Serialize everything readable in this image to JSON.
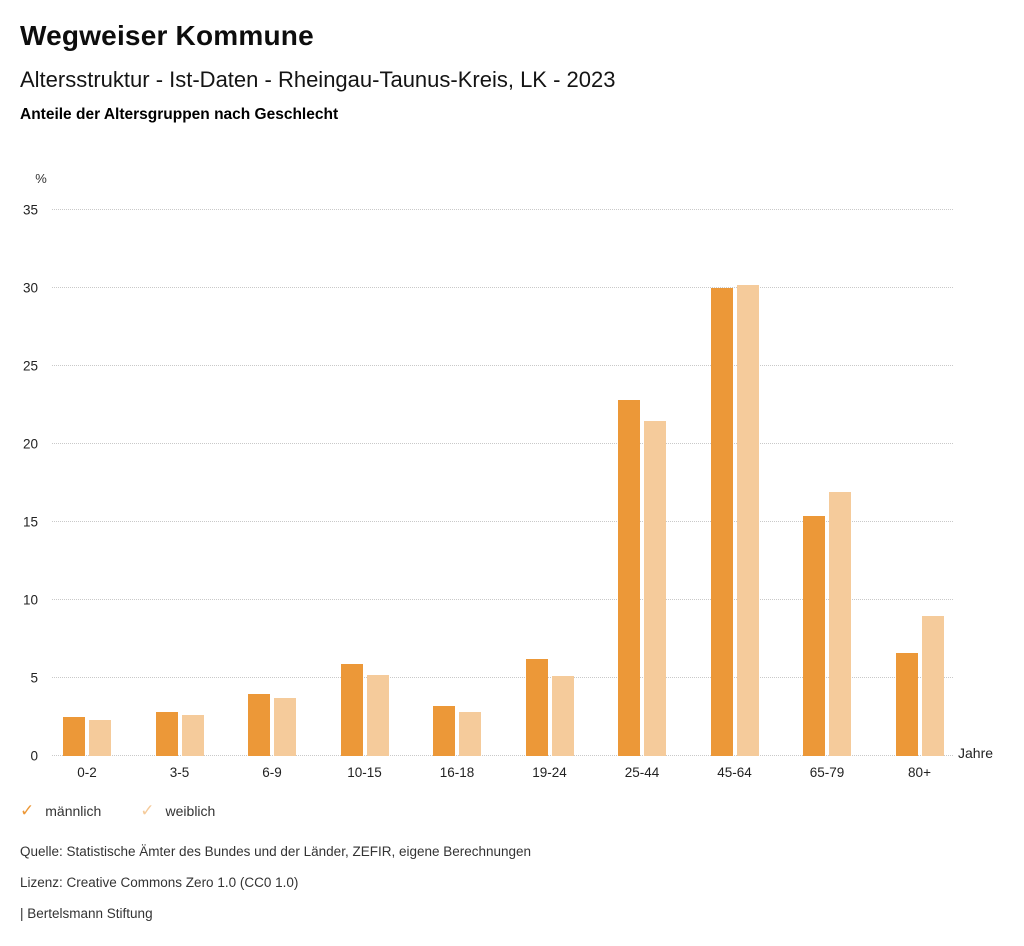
{
  "header": {
    "title": "Wegweiser Kommune",
    "subtitle": "Altersstruktur - Ist-Daten - Rheingau-Taunus-Kreis, LK - 2023",
    "subsubtitle": "Anteile der Altersgruppen nach Geschlecht"
  },
  "chart_data": {
    "type": "bar",
    "title": "Anteile der Altersgruppen nach Geschlecht",
    "xlabel": "Jahre",
    "ylabel": "%",
    "categories": [
      "0-2",
      "3-5",
      "6-9",
      "10-15",
      "16-18",
      "19-24",
      "25-44",
      "45-64",
      "65-79",
      "80+"
    ],
    "series": [
      {
        "name": "männlich",
        "color": "#EC9838",
        "values": [
          2.5,
          2.8,
          4.0,
          5.9,
          3.2,
          6.2,
          22.8,
          30.0,
          15.4,
          6.6
        ]
      },
      {
        "name": "weiblich",
        "color": "#F5CB9B",
        "values": [
          2.3,
          2.6,
          3.7,
          5.2,
          2.8,
          5.1,
          21.5,
          30.2,
          16.9,
          9.0
        ]
      }
    ],
    "ylim": [
      0,
      35
    ],
    "yticks": [
      0,
      5,
      10,
      15,
      20,
      25,
      30,
      35
    ],
    "grid": "horizontal-dotted",
    "gridline_color": "#c9c9c9",
    "legend_position": "bottom-left"
  },
  "legend": {
    "check_glyph": "✓",
    "items": [
      {
        "label": "männlich",
        "color": "#EC9838"
      },
      {
        "label": "weiblich",
        "color": "#F5CB9B"
      }
    ]
  },
  "footer": {
    "source": "Quelle: Statistische Ämter des Bundes und der Länder, ZEFIR, eigene Berechnungen",
    "license": "Lizenz: Creative Commons Zero 1.0 (CC0 1.0)",
    "attribution": "| Bertelsmann Stiftung"
  }
}
